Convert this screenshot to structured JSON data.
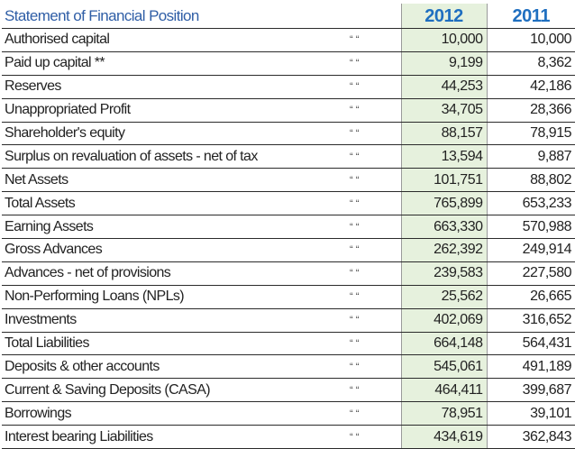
{
  "table": {
    "title": "Statement of Financial Position",
    "col_2012": "2012",
    "col_2011": "2011",
    "rows": [
      {
        "label": "Authorised capital",
        "unit": "“ “",
        "v2012": "10,000",
        "v2011": "10,000"
      },
      {
        "label": "Paid up capital **",
        "unit": "“ “",
        "v2012": "9,199",
        "v2011": "8,362"
      },
      {
        "label": "Reserves",
        "unit": "“ “",
        "v2012": "44,253",
        "v2011": "42,186"
      },
      {
        "label": "Unappropriated Profit",
        "unit": "“ “",
        "v2012": "34,705",
        "v2011": "28,366"
      },
      {
        "label": "Shareholder's equity",
        "unit": "“ “",
        "v2012": "88,157",
        "v2011": "78,915"
      },
      {
        "label": "Surplus on revaluation of assets - net of tax",
        "unit": "“ “",
        "v2012": "13,594",
        "v2011": "9,887"
      },
      {
        "label": "Net Assets",
        "unit": "“ “",
        "v2012": "101,751",
        "v2011": "88,802"
      },
      {
        "label": "Total Assets",
        "unit": "“ “",
        "v2012": "765,899",
        "v2011": "653,233"
      },
      {
        "label": "Earning Assets",
        "unit": "“ “",
        "v2012": "663,330",
        "v2011": "570,988"
      },
      {
        "label": "Gross Advances",
        "unit": "“ “",
        "v2012": "262,392",
        "v2011": "249,914"
      },
      {
        "label": "Advances - net of provisions",
        "unit": "“ “",
        "v2012": "239,583",
        "v2011": "227,580"
      },
      {
        "label": "Non-Performing Loans (NPLs)",
        "unit": "“ “",
        "v2012": "25,562",
        "v2011": "26,665"
      },
      {
        "label": "Investments",
        "unit": "“ “",
        "v2012": "402,069",
        "v2011": "316,652"
      },
      {
        "label": "Total Liabilities",
        "unit": "“ “",
        "v2012": "664,148",
        "v2011": "564,431"
      },
      {
        "label": "Deposits & other accounts",
        "unit": "“ “",
        "v2012": "545,061",
        "v2011": "491,189"
      },
      {
        "label": "Current & Saving Deposits (CASA)",
        "unit": "“ “",
        "v2012": "464,411",
        "v2011": "399,687"
      },
      {
        "label": "Borrowings",
        "unit": "“ “",
        "v2012": "78,951",
        "v2011": "39,101"
      },
      {
        "label": "Interest bearing Liabilities",
        "unit": "“ “",
        "v2012": "434,619",
        "v2011": "362,843"
      }
    ]
  }
}
